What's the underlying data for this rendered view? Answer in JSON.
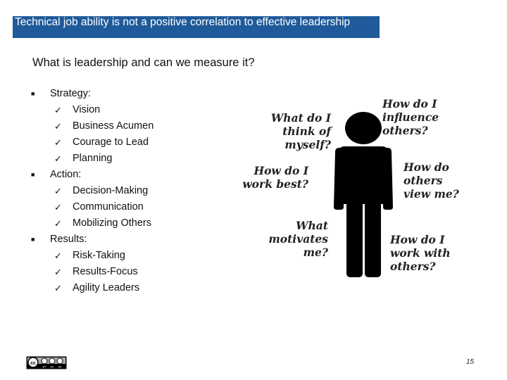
{
  "slide": {
    "title": "Technical job ability is not a positive correlation to effective leadership",
    "subtitle": "What is leadership and can we measure it?",
    "page_number": "15"
  },
  "outline": [
    {
      "label": "Strategy:",
      "items": [
        "Vision",
        "Business Acumen",
        "Courage to Lead",
        "Planning"
      ]
    },
    {
      "label": "Action:",
      "items": [
        "Decision-Making",
        "Communication",
        "Mobilizing Others"
      ]
    },
    {
      "label": "Results:",
      "items": [
        "Risk-Taking",
        "Results-Focus",
        "Agility Leaders"
      ]
    }
  ],
  "figure": {
    "questions": {
      "think_of_myself": "What do I\nthink of\nmyself?",
      "influence_others": "How do I\ninfluence\nothers?",
      "work_best": "How do I\nwork best?",
      "others_view_me": "How do\nothers\nview me?",
      "motivates_me": "What\nmotivates\nme?",
      "work_with_others": "How do I\nwork with\nothers?"
    }
  },
  "license": {
    "badge": "cc",
    "terms": [
      "BY",
      "NC",
      "SA"
    ]
  },
  "colors": {
    "title_bar": "#1f5a9a",
    "title_text": "#ffffff",
    "figure": "#000000"
  }
}
